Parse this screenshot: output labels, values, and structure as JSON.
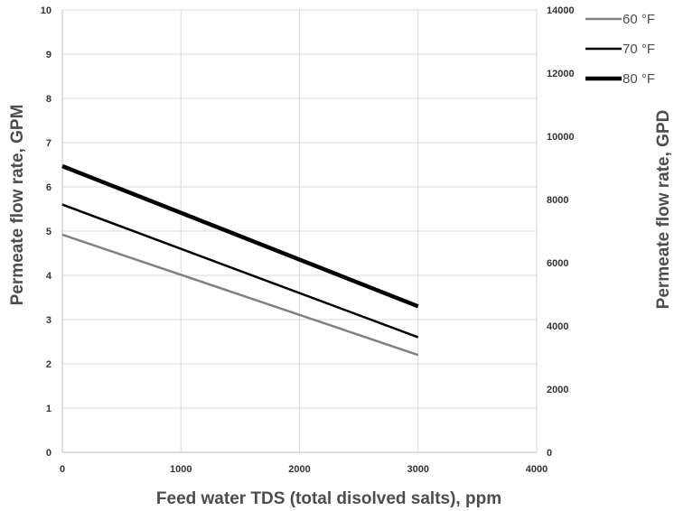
{
  "chart_data": {
    "type": "line",
    "title": "",
    "xlabel": "Feed water TDS (total disolved salts), ppm",
    "ylabel": "Permeate flow rate, GPM",
    "y2label": "Permeate flow rate, GPD",
    "xlim": [
      0,
      4000
    ],
    "ylim": [
      0,
      10
    ],
    "y2lim": [
      0,
      14000
    ],
    "x_ticks": [
      "0",
      "1000",
      "2000",
      "3000",
      "4000"
    ],
    "y_ticks": [
      "0",
      "1",
      "2",
      "3",
      "4",
      "5",
      "6",
      "7",
      "8",
      "9",
      "10"
    ],
    "y2_ticks": [
      "0",
      "2000",
      "4000",
      "6000",
      "8000",
      "10000",
      "12000",
      "14000"
    ],
    "grid": true,
    "legend_position": "top-right",
    "series": [
      {
        "name": "60 °F",
        "color": "#808080",
        "width": "thin",
        "x": [
          0,
          3000
        ],
        "y": [
          4.92,
          2.2
        ]
      },
      {
        "name": "70 °F",
        "color": "#000000",
        "width": "medium",
        "x": [
          0,
          3000
        ],
        "y": [
          5.6,
          2.6
        ]
      },
      {
        "name": "80 °F",
        "color": "#000000",
        "width": "thick",
        "x": [
          0,
          3000
        ],
        "y": [
          6.47,
          3.3
        ]
      }
    ]
  }
}
